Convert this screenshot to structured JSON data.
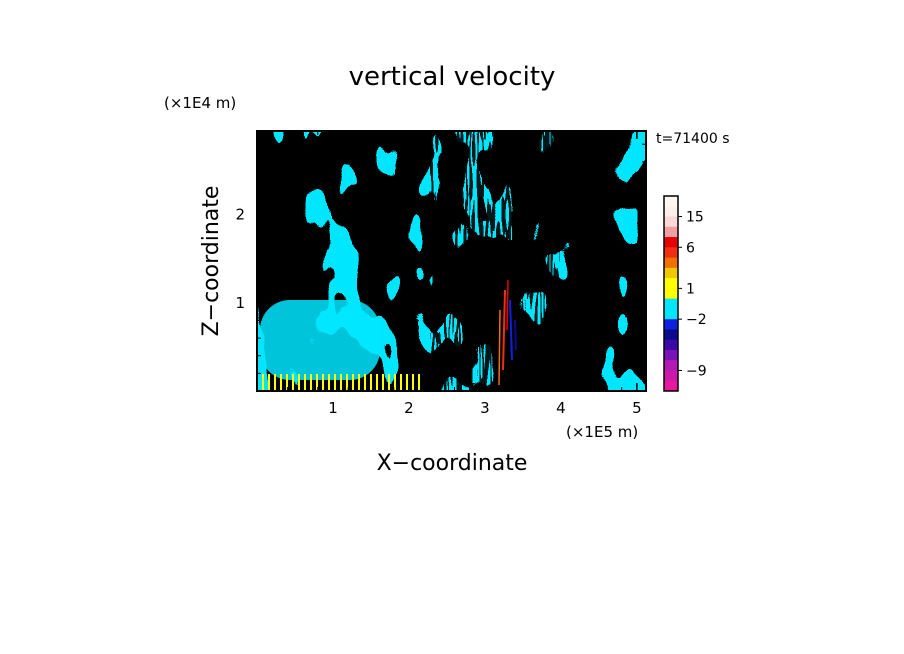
{
  "chart_data": {
    "type": "heatmap",
    "title": "vertical velocity",
    "xlabel": "X−coordinate",
    "ylabel": "Z−coordinate",
    "x_scale_label": "(×1E5 m)",
    "y_scale_label": "(×1E4 m)",
    "time_label": "t=71400 s",
    "xlim": [
      0,
      5.12
    ],
    "ylim": [
      0,
      2.95
    ],
    "x_ticks": [
      1,
      2,
      3,
      4,
      5
    ],
    "y_ticks": [
      1,
      2
    ],
    "colorbar": {
      "levels": [
        -12,
        -10.5,
        -9,
        -7.5,
        -6,
        -4.5,
        -3,
        -2,
        -1,
        0,
        1,
        2,
        3,
        4.5,
        6,
        7.5,
        10.5,
        13.5,
        16.5,
        19.5
      ],
      "colors": [
        "#e8189c",
        "#cc1aa8",
        "#b31ab4",
        "#7a14b8",
        "#3a0aa6",
        "#0a0a8c",
        "#1020e0",
        "#00e6ff",
        "#00e6ff",
        "#ffff00",
        "#ffff00",
        "#f0c800",
        "#f07000",
        "#f03010",
        "#e80000",
        "#f0a0a0",
        "#fbd8d8",
        "#fdf0ec",
        "#fff6f2"
      ],
      "labeled_values": [
        15,
        6,
        1,
        -2,
        -9
      ],
      "labels": [
        "15",
        "6",
        "1",
        "−2",
        "−9"
      ]
    },
    "dominant_values": {
      "negative_fill": "#00e6ff",
      "positive_fill": "#ffff00"
    },
    "legend_position": "right"
  }
}
